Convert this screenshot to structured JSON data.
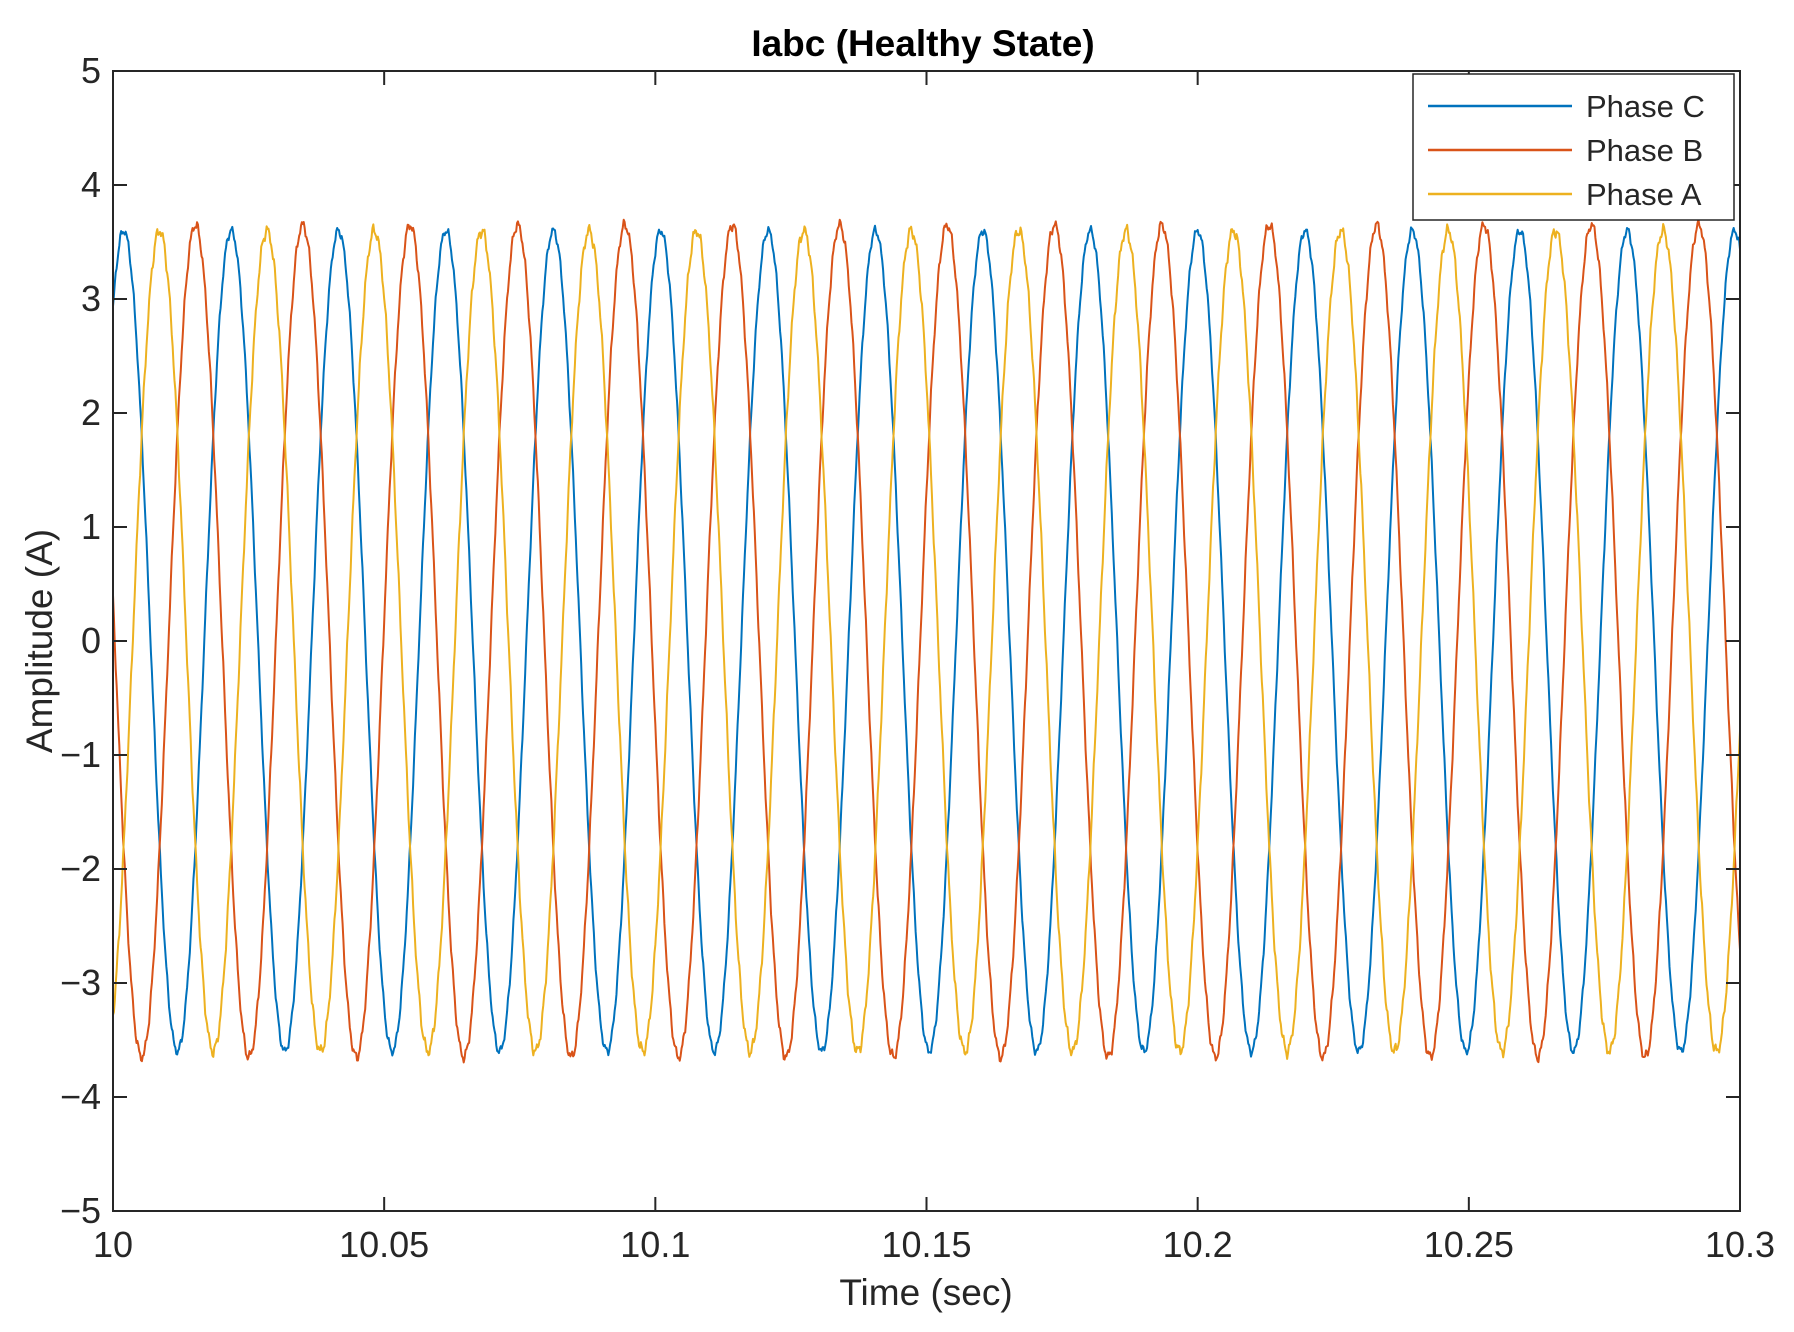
{
  "chart_data": {
    "type": "line",
    "title": "Iabc (Healthy State)",
    "xlabel": "Time (sec)",
    "ylabel": "Amplitude (A)",
    "xlim": [
      10,
      10.3
    ],
    "ylim": [
      -5,
      5
    ],
    "xticks": [
      10,
      10.05,
      10.1,
      10.15,
      10.2,
      10.25,
      10.3
    ],
    "xtick_labels": [
      "10",
      "10.05",
      "10.1",
      "10.15",
      "10.2",
      "10.25",
      "10.3"
    ],
    "yticks": [
      -5,
      -4,
      -3,
      -2,
      -1,
      0,
      1,
      2,
      3,
      4,
      5
    ],
    "ytick_labels": [
      "−5",
      "−4",
      "−3",
      "−2",
      "−1",
      "0",
      "1",
      "2",
      "3",
      "4",
      "5"
    ],
    "grid": false,
    "legend_position": "top-right",
    "series": [
      {
        "name": "Phase C",
        "color": "#0072BD",
        "amplitude_A": 3.6,
        "frequency_Hz": 50.5,
        "phase_deg": 54,
        "noise_A": 0.05
      },
      {
        "name": "Phase B",
        "color": "#D95319",
        "amplitude_A": 3.65,
        "frequency_Hz": 50.5,
        "phase_deg": 174,
        "noise_A": 0.06
      },
      {
        "name": "Phase A",
        "color": "#EDB120",
        "amplitude_A": 3.6,
        "frequency_Hz": 50.5,
        "phase_deg": -66,
        "noise_A": 0.07
      }
    ]
  }
}
